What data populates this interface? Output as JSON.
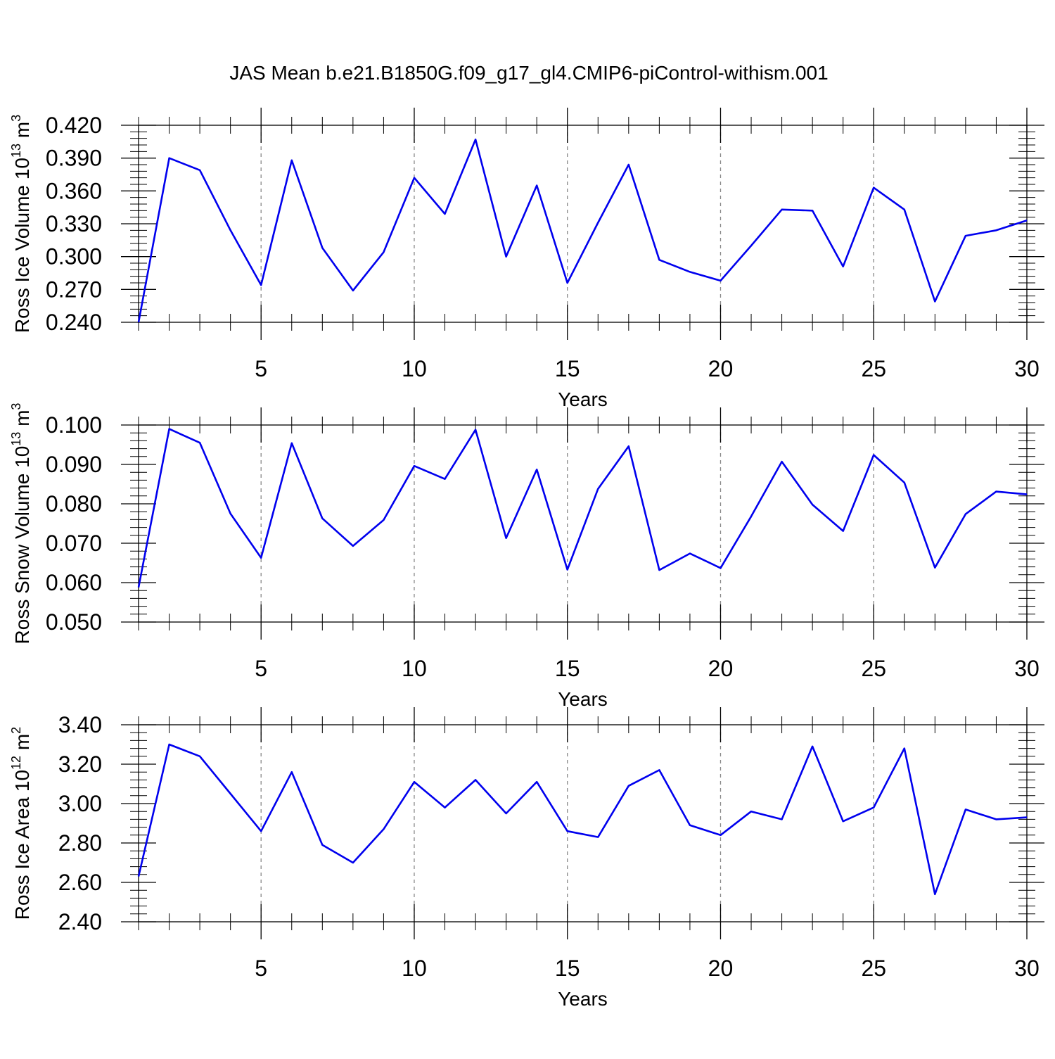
{
  "title": "JAS Mean b.e21.B1850G.f09_g17_gl4.CMIP6-piControl-withism.001",
  "colors": {
    "line": "#0000ee",
    "grid": "#888888"
  },
  "chart_data": [
    {
      "type": "line",
      "ylabel": {
        "main": "Ross Ice Volume 10",
        "exp": "13",
        "unit": " m",
        "unit_exp": "3"
      },
      "xlabel": "Years",
      "xlim": [
        1,
        30
      ],
      "ylim": [
        0.24,
        0.42
      ],
      "yticks": [
        0.24,
        0.27,
        0.3,
        0.33,
        0.36,
        0.39,
        0.42
      ],
      "ytick_labels": [
        "0.240",
        "0.270",
        "0.300",
        "0.330",
        "0.360",
        "0.390",
        "0.420"
      ],
      "xticks": [
        5,
        10,
        15,
        20,
        25,
        30
      ],
      "xtick_labels": [
        "5",
        "10",
        "15",
        "20",
        "25",
        "30"
      ],
      "grid_x": true,
      "x": [
        1,
        2,
        3,
        4,
        5,
        6,
        7,
        8,
        9,
        10,
        11,
        12,
        13,
        14,
        15,
        16,
        17,
        18,
        19,
        20,
        21,
        22,
        23,
        24,
        25,
        26,
        27,
        28,
        29,
        30
      ],
      "values": [
        0.24,
        0.39,
        0.379,
        0.324,
        0.274,
        0.388,
        0.308,
        0.269,
        0.304,
        0.372,
        0.339,
        0.407,
        0.3,
        0.365,
        0.276,
        0.331,
        0.384,
        0.297,
        0.286,
        0.278,
        0.31,
        0.343,
        0.342,
        0.291,
        0.363,
        0.343,
        0.259,
        0.319,
        0.324,
        0.333
      ]
    },
    {
      "type": "line",
      "ylabel": {
        "main": "Ross Snow Volume 10",
        "exp": "13",
        "unit": " m",
        "unit_exp": "3"
      },
      "xlabel": "Years",
      "xlim": [
        1,
        30
      ],
      "ylim": [
        0.05,
        0.1
      ],
      "yticks": [
        0.05,
        0.06,
        0.07,
        0.08,
        0.09,
        0.1
      ],
      "ytick_labels": [
        "0.050",
        "0.060",
        "0.070",
        "0.080",
        "0.090",
        "0.100"
      ],
      "xticks": [
        5,
        10,
        15,
        20,
        25,
        30
      ],
      "xtick_labels": [
        "5",
        "10",
        "15",
        "20",
        "25",
        "30"
      ],
      "grid_x": true,
      "x": [
        1,
        2,
        3,
        4,
        5,
        6,
        7,
        8,
        9,
        10,
        11,
        12,
        13,
        14,
        15,
        16,
        17,
        18,
        19,
        20,
        21,
        22,
        23,
        24,
        25,
        26,
        27,
        28,
        29,
        30
      ],
      "values": [
        0.0588,
        0.099,
        0.0955,
        0.0775,
        0.0663,
        0.0954,
        0.0763,
        0.0693,
        0.0759,
        0.0896,
        0.0863,
        0.0988,
        0.0713,
        0.0887,
        0.0633,
        0.0838,
        0.0946,
        0.0632,
        0.0674,
        0.0637,
        0.0768,
        0.0907,
        0.0798,
        0.0731,
        0.0924,
        0.0854,
        0.0638,
        0.0774,
        0.0831,
        0.0824
      ]
    },
    {
      "type": "line",
      "ylabel": {
        "main": "Ross Ice Area 10",
        "exp": "12",
        "unit": " m",
        "unit_exp": "2"
      },
      "xlabel": "Years",
      "xlim": [
        1,
        30
      ],
      "ylim": [
        2.4,
        3.4
      ],
      "yticks": [
        2.4,
        2.6,
        2.8,
        3.0,
        3.2,
        3.4
      ],
      "ytick_labels": [
        "2.40",
        "2.60",
        "2.80",
        "3.00",
        "3.20",
        "3.40"
      ],
      "xticks": [
        5,
        10,
        15,
        20,
        25,
        30
      ],
      "xtick_labels": [
        "5",
        "10",
        "15",
        "20",
        "25",
        "30"
      ],
      "grid_x": true,
      "x": [
        1,
        2,
        3,
        4,
        5,
        6,
        7,
        8,
        9,
        10,
        11,
        12,
        13,
        14,
        15,
        16,
        17,
        18,
        19,
        20,
        21,
        22,
        23,
        24,
        25,
        26,
        27,
        28,
        29,
        30
      ],
      "values": [
        2.63,
        3.3,
        3.24,
        3.05,
        2.86,
        3.16,
        2.79,
        2.7,
        2.87,
        3.11,
        2.98,
        3.12,
        2.95,
        3.11,
        2.86,
        2.83,
        3.09,
        3.17,
        2.89,
        2.84,
        2.96,
        2.92,
        3.29,
        2.91,
        2.98,
        3.28,
        2.54,
        2.97,
        2.92,
        2.93
      ]
    }
  ]
}
